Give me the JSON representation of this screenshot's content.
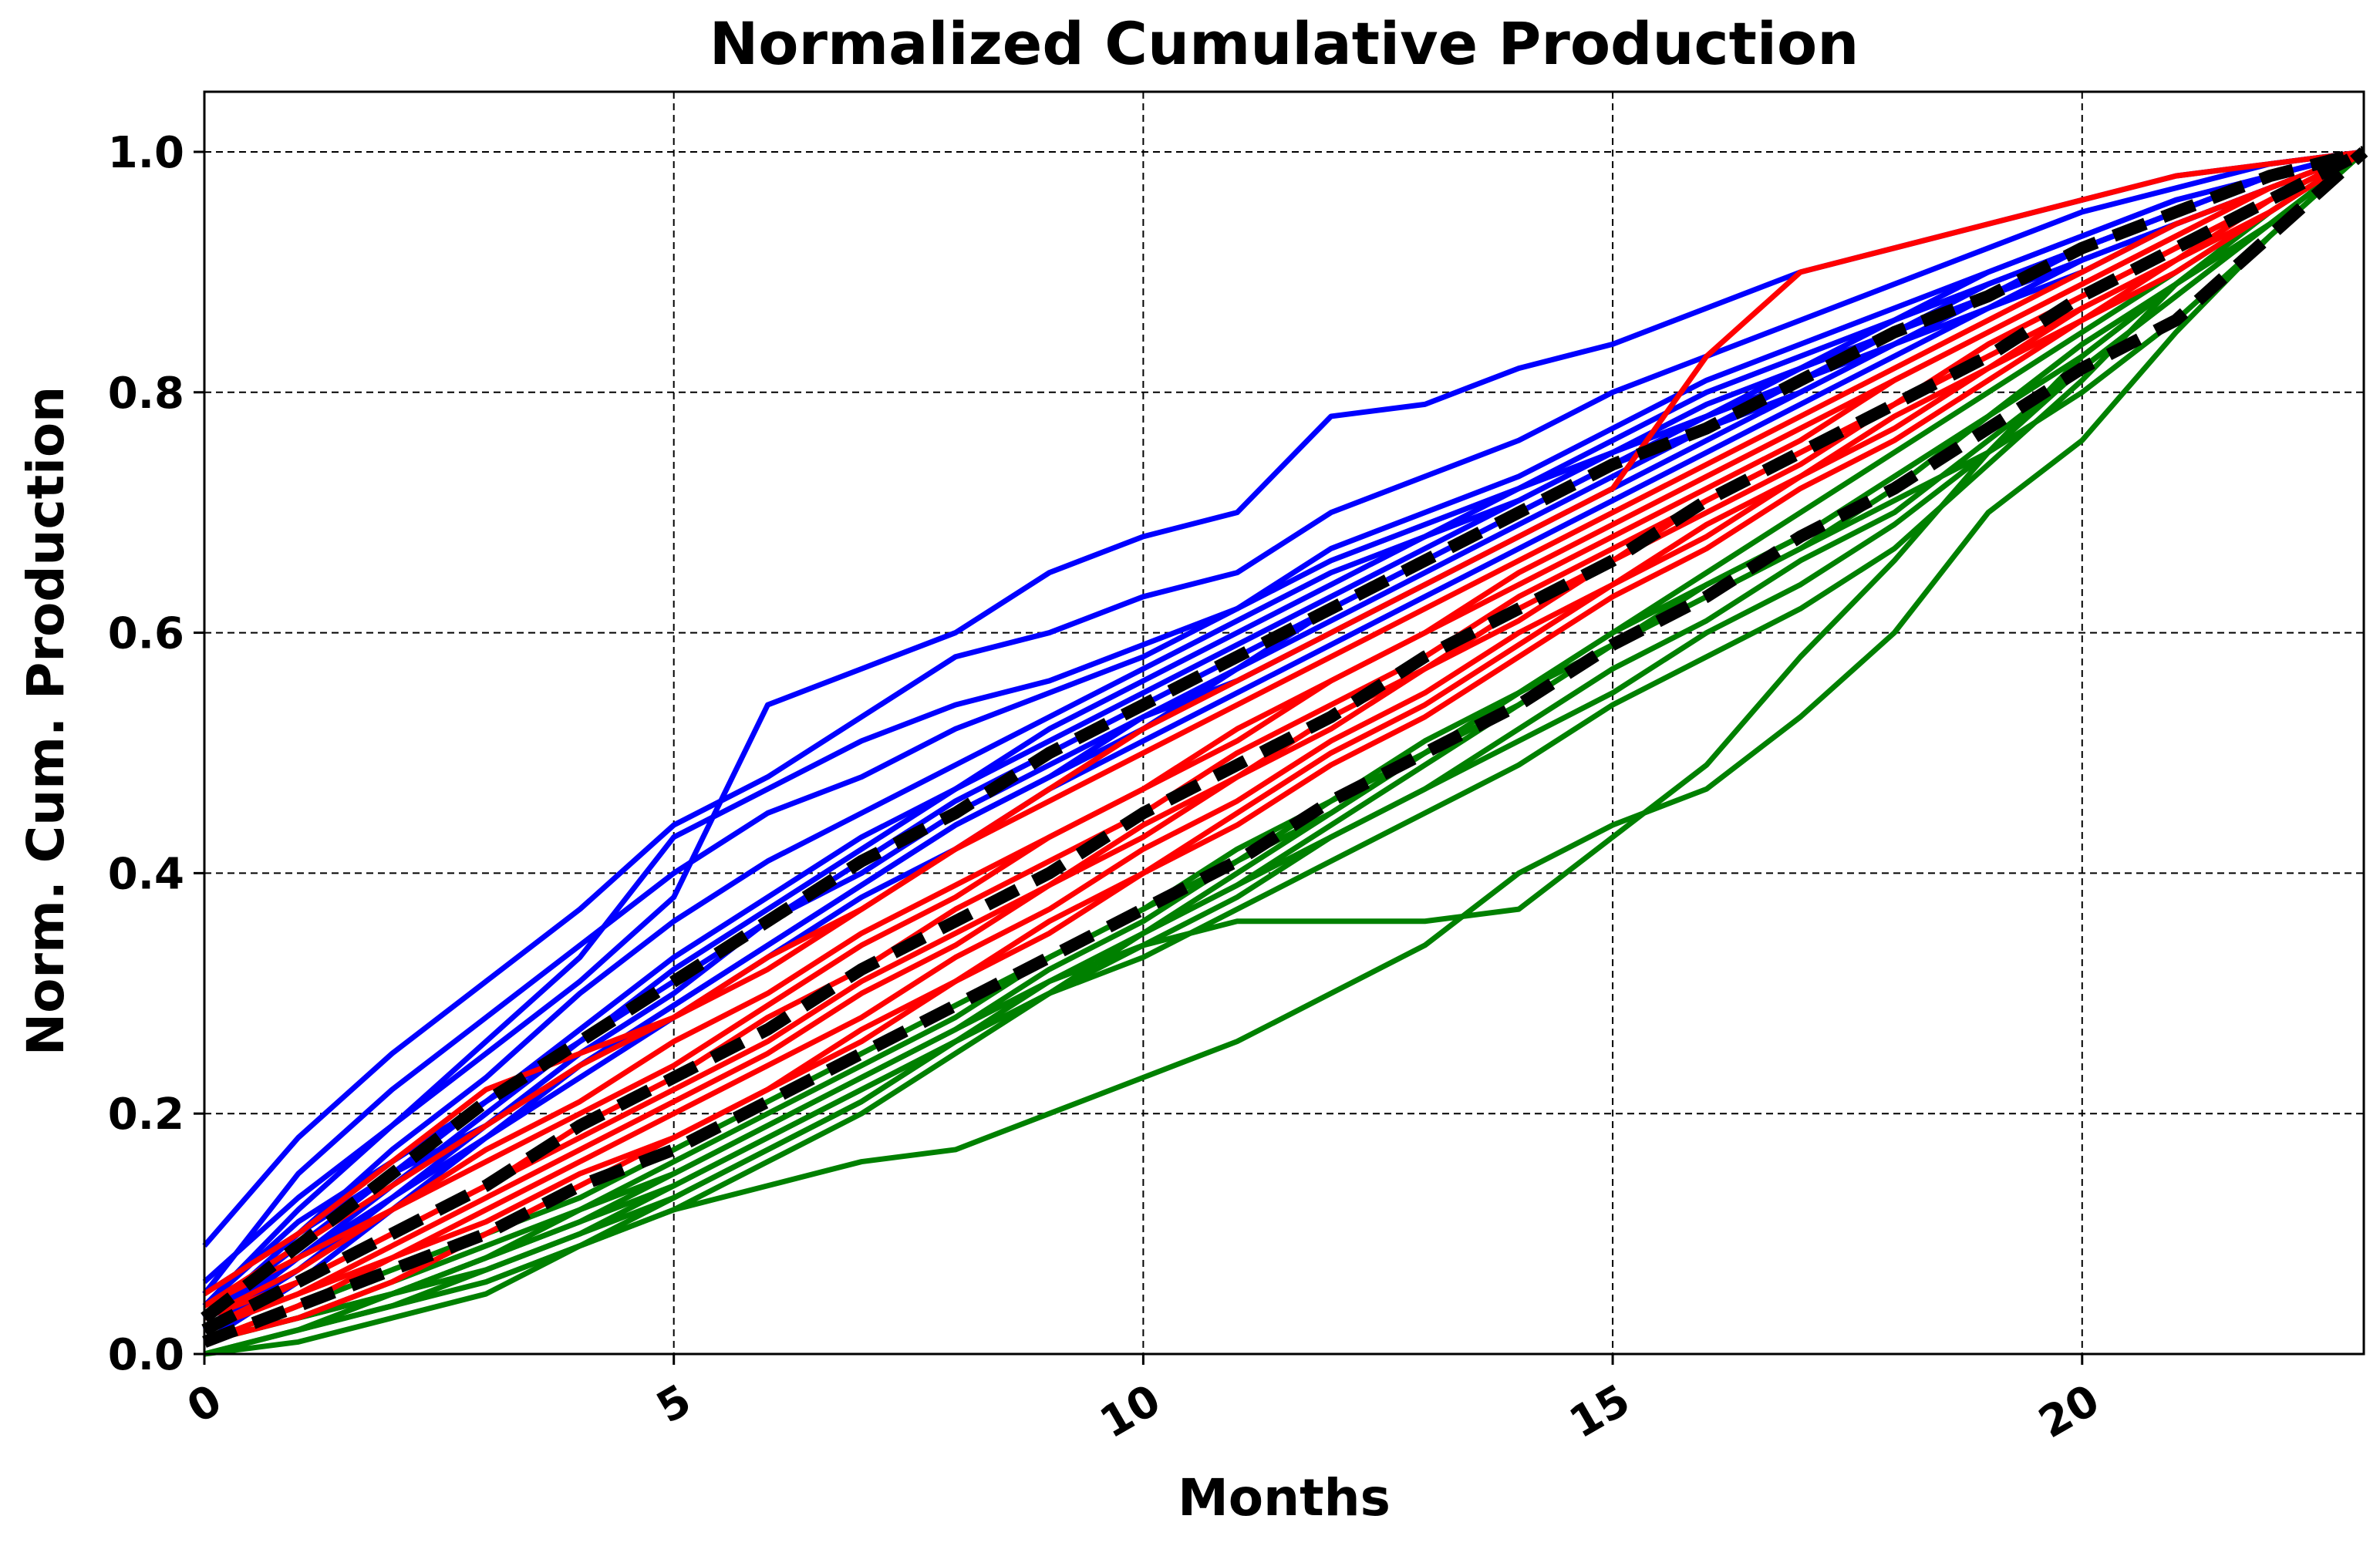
{
  "chart_data": {
    "type": "line",
    "title": "Normalized Cumulative Production",
    "xlabel": "Months",
    "ylabel": "Norm. Cum. Production",
    "xlim": [
      0,
      23
    ],
    "ylim": [
      0,
      1.05
    ],
    "xticks": [
      0,
      5,
      10,
      15,
      20
    ],
    "yticks": [
      0.0,
      0.2,
      0.4,
      0.6,
      0.8,
      1.0
    ],
    "xtick_labels": [
      "0",
      "5",
      "10",
      "15",
      "20"
    ],
    "ytick_labels": [
      "0.0",
      "0.2",
      "0.4",
      "0.6",
      "0.8",
      "1.0"
    ],
    "grid": true,
    "legend": "none",
    "colors": {
      "blue": "#0000ff",
      "red": "#ff0000",
      "green": "#008000",
      "reference": "#000000"
    },
    "months": [
      0,
      1,
      2,
      3,
      4,
      5,
      6,
      7,
      8,
      9,
      10,
      11,
      12,
      13,
      14,
      15,
      16,
      17,
      18,
      19,
      20,
      21,
      22,
      23
    ],
    "series": [
      {
        "color": "blue",
        "values": [
          0.09,
          0.18,
          0.25,
          0.31,
          0.37,
          0.44,
          0.48,
          0.53,
          0.58,
          0.6,
          0.63,
          0.65,
          0.7,
          0.73,
          0.76,
          0.8,
          0.83,
          0.86,
          0.89,
          0.92,
          0.95,
          0.97,
          0.99,
          1.0
        ]
      },
      {
        "color": "blue",
        "values": [
          0.06,
          0.13,
          0.19,
          0.25,
          0.31,
          0.38,
          0.54,
          0.57,
          0.6,
          0.65,
          0.68,
          0.7,
          0.78,
          0.79,
          0.82,
          0.84,
          0.87,
          0.9,
          0.92,
          0.94,
          0.96,
          0.98,
          0.99,
          1.0
        ]
      },
      {
        "color": "blue",
        "values": [
          0.05,
          0.15,
          0.22,
          0.28,
          0.34,
          0.4,
          0.45,
          0.48,
          0.52,
          0.55,
          0.58,
          0.62,
          0.67,
          0.7,
          0.73,
          0.77,
          0.81,
          0.84,
          0.87,
          0.9,
          0.93,
          0.96,
          0.98,
          1.0
        ]
      },
      {
        "color": "blue",
        "values": [
          0.04,
          0.12,
          0.19,
          0.26,
          0.33,
          0.43,
          0.47,
          0.51,
          0.54,
          0.56,
          0.59,
          0.62,
          0.66,
          0.69,
          0.72,
          0.76,
          0.8,
          0.83,
          0.86,
          0.9,
          0.93,
          0.96,
          0.98,
          1.0
        ]
      },
      {
        "color": "blue",
        "values": [
          0.03,
          0.1,
          0.17,
          0.23,
          0.3,
          0.36,
          0.41,
          0.45,
          0.49,
          0.53,
          0.57,
          0.61,
          0.65,
          0.68,
          0.72,
          0.75,
          0.79,
          0.82,
          0.86,
          0.89,
          0.92,
          0.95,
          0.98,
          1.0
        ]
      },
      {
        "color": "blue",
        "values": [
          0.04,
          0.11,
          0.16,
          0.21,
          0.26,
          0.32,
          0.37,
          0.42,
          0.47,
          0.51,
          0.55,
          0.59,
          0.63,
          0.67,
          0.71,
          0.75,
          0.78,
          0.82,
          0.85,
          0.89,
          0.92,
          0.95,
          0.98,
          1.0
        ]
      },
      {
        "color": "blue",
        "values": [
          0.02,
          0.08,
          0.14,
          0.2,
          0.26,
          0.31,
          0.36,
          0.41,
          0.46,
          0.5,
          0.54,
          0.58,
          0.62,
          0.66,
          0.7,
          0.74,
          0.78,
          0.81,
          0.85,
          0.88,
          0.92,
          0.95,
          0.98,
          1.0
        ]
      },
      {
        "color": "blue",
        "values": [
          0.03,
          0.09,
          0.15,
          0.21,
          0.27,
          0.33,
          0.38,
          0.43,
          0.47,
          0.52,
          0.56,
          0.6,
          0.64,
          0.68,
          0.71,
          0.75,
          0.78,
          0.82,
          0.85,
          0.88,
          0.91,
          0.94,
          0.97,
          1.0
        ]
      },
      {
        "color": "blue",
        "values": [
          0.05,
          0.1,
          0.15,
          0.19,
          0.24,
          0.29,
          0.34,
          0.39,
          0.44,
          0.48,
          0.53,
          0.57,
          0.61,
          0.65,
          0.69,
          0.73,
          0.77,
          0.81,
          0.84,
          0.88,
          0.92,
          0.95,
          0.98,
          1.0
        ]
      },
      {
        "color": "blue",
        "values": [
          0.02,
          0.07,
          0.13,
          0.19,
          0.25,
          0.3,
          0.36,
          0.4,
          0.45,
          0.49,
          0.53,
          0.56,
          0.6,
          0.64,
          0.68,
          0.72,
          0.76,
          0.8,
          0.84,
          0.88,
          0.91,
          0.94,
          0.97,
          1.0
        ]
      },
      {
        "color": "blue",
        "values": [
          0.01,
          0.06,
          0.12,
          0.18,
          0.24,
          0.29,
          0.34,
          0.39,
          0.44,
          0.48,
          0.52,
          0.57,
          0.62,
          0.66,
          0.7,
          0.74,
          0.77,
          0.8,
          0.84,
          0.87,
          0.91,
          0.94,
          0.97,
          1.0
        ]
      },
      {
        "color": "blue",
        "values": [
          0.03,
          0.08,
          0.13,
          0.18,
          0.23,
          0.28,
          0.33,
          0.38,
          0.42,
          0.47,
          0.51,
          0.55,
          0.59,
          0.63,
          0.67,
          0.71,
          0.75,
          0.79,
          0.83,
          0.87,
          0.9,
          0.94,
          0.97,
          1.0
        ]
      },
      {
        "color": "red",
        "values": [
          0.05,
          0.1,
          0.16,
          0.22,
          0.25,
          0.28,
          0.32,
          0.37,
          0.42,
          0.47,
          0.52,
          0.56,
          0.6,
          0.64,
          0.68,
          0.72,
          0.83,
          0.9,
          0.92,
          0.94,
          0.96,
          0.98,
          0.99,
          1.0
        ]
      },
      {
        "color": "red",
        "values": [
          0.04,
          0.09,
          0.14,
          0.19,
          0.24,
          0.28,
          0.33,
          0.37,
          0.42,
          0.46,
          0.5,
          0.54,
          0.58,
          0.62,
          0.66,
          0.7,
          0.74,
          0.78,
          0.82,
          0.86,
          0.9,
          0.94,
          0.97,
          1.0
        ]
      },
      {
        "color": "red",
        "values": [
          0.03,
          0.07,
          0.12,
          0.17,
          0.21,
          0.26,
          0.3,
          0.35,
          0.39,
          0.43,
          0.47,
          0.52,
          0.56,
          0.6,
          0.64,
          0.68,
          0.72,
          0.76,
          0.81,
          0.85,
          0.89,
          0.93,
          0.97,
          1.0
        ]
      },
      {
        "color": "red",
        "values": [
          0.02,
          0.06,
          0.1,
          0.14,
          0.19,
          0.23,
          0.28,
          0.32,
          0.37,
          0.41,
          0.45,
          0.5,
          0.54,
          0.58,
          0.63,
          0.67,
          0.71,
          0.75,
          0.79,
          0.84,
          0.88,
          0.92,
          0.96,
          1.0
        ]
      },
      {
        "color": "red",
        "values": [
          0.02,
          0.05,
          0.09,
          0.13,
          0.17,
          0.21,
          0.25,
          0.3,
          0.34,
          0.39,
          0.43,
          0.48,
          0.52,
          0.57,
          0.61,
          0.66,
          0.7,
          0.74,
          0.79,
          0.83,
          0.87,
          0.91,
          0.96,
          1.0
        ]
      },
      {
        "color": "red",
        "values": [
          0.01,
          0.04,
          0.08,
          0.12,
          0.16,
          0.2,
          0.24,
          0.28,
          0.33,
          0.37,
          0.42,
          0.46,
          0.51,
          0.55,
          0.6,
          0.64,
          0.69,
          0.73,
          0.78,
          0.82,
          0.87,
          0.91,
          0.96,
          1.0
        ]
      },
      {
        "color": "red",
        "values": [
          0.02,
          0.05,
          0.08,
          0.11,
          0.15,
          0.18,
          0.22,
          0.27,
          0.31,
          0.36,
          0.4,
          0.45,
          0.5,
          0.54,
          0.59,
          0.64,
          0.68,
          0.73,
          0.77,
          0.82,
          0.86,
          0.91,
          0.95,
          1.0
        ]
      },
      {
        "color": "red",
        "values": [
          0.03,
          0.06,
          0.1,
          0.14,
          0.18,
          0.22,
          0.26,
          0.31,
          0.35,
          0.39,
          0.44,
          0.48,
          0.53,
          0.57,
          0.62,
          0.66,
          0.71,
          0.75,
          0.79,
          0.84,
          0.88,
          0.92,
          0.96,
          1.0
        ]
      },
      {
        "color": "red",
        "values": [
          0.01,
          0.03,
          0.06,
          0.1,
          0.14,
          0.18,
          0.22,
          0.26,
          0.31,
          0.35,
          0.4,
          0.44,
          0.49,
          0.53,
          0.58,
          0.63,
          0.67,
          0.72,
          0.76,
          0.81,
          0.86,
          0.9,
          0.95,
          1.0
        ]
      },
      {
        "color": "red",
        "values": [
          0.04,
          0.08,
          0.12,
          0.16,
          0.2,
          0.24,
          0.29,
          0.34,
          0.38,
          0.43,
          0.47,
          0.51,
          0.56,
          0.6,
          0.65,
          0.69,
          0.73,
          0.77,
          0.81,
          0.85,
          0.89,
          0.93,
          0.97,
          1.0
        ]
      },
      {
        "color": "green",
        "values": [
          0.0,
          0.01,
          0.03,
          0.05,
          0.09,
          0.12,
          0.14,
          0.16,
          0.17,
          0.2,
          0.23,
          0.26,
          0.3,
          0.34,
          0.4,
          0.44,
          0.47,
          0.53,
          0.6,
          0.7,
          0.76,
          0.85,
          0.93,
          1.0
        ]
      },
      {
        "color": "green",
        "values": [
          0.0,
          0.02,
          0.04,
          0.06,
          0.09,
          0.13,
          0.17,
          0.21,
          0.26,
          0.31,
          0.34,
          0.36,
          0.36,
          0.36,
          0.37,
          0.43,
          0.49,
          0.58,
          0.66,
          0.75,
          0.83,
          0.89,
          0.95,
          1.0
        ]
      },
      {
        "color": "green",
        "values": [
          0.01,
          0.03,
          0.05,
          0.07,
          0.1,
          0.14,
          0.18,
          0.22,
          0.26,
          0.3,
          0.33,
          0.37,
          0.41,
          0.45,
          0.49,
          0.54,
          0.58,
          0.62,
          0.67,
          0.74,
          0.81,
          0.89,
          0.95,
          1.0
        ]
      },
      {
        "color": "green",
        "values": [
          0.01,
          0.03,
          0.05,
          0.08,
          0.11,
          0.15,
          0.19,
          0.23,
          0.27,
          0.31,
          0.35,
          0.39,
          0.43,
          0.47,
          0.51,
          0.55,
          0.6,
          0.64,
          0.69,
          0.75,
          0.82,
          0.88,
          0.94,
          1.0
        ]
      },
      {
        "color": "green",
        "values": [
          0.0,
          0.02,
          0.04,
          0.07,
          0.1,
          0.13,
          0.17,
          0.21,
          0.26,
          0.3,
          0.34,
          0.38,
          0.43,
          0.47,
          0.52,
          0.57,
          0.61,
          0.66,
          0.7,
          0.76,
          0.82,
          0.88,
          0.94,
          1.0
        ]
      },
      {
        "color": "green",
        "values": [
          0.01,
          0.03,
          0.06,
          0.09,
          0.12,
          0.16,
          0.2,
          0.24,
          0.28,
          0.33,
          0.37,
          0.42,
          0.46,
          0.51,
          0.55,
          0.6,
          0.64,
          0.68,
          0.73,
          0.78,
          0.83,
          0.89,
          0.95,
          1.0
        ]
      },
      {
        "color": "green",
        "values": [
          0.0,
          0.02,
          0.05,
          0.08,
          0.11,
          0.14,
          0.18,
          0.22,
          0.26,
          0.3,
          0.35,
          0.39,
          0.44,
          0.49,
          0.54,
          0.59,
          0.63,
          0.67,
          0.72,
          0.78,
          0.84,
          0.89,
          0.95,
          1.0
        ]
      },
      {
        "color": "green",
        "values": [
          0.01,
          0.04,
          0.07,
          0.1,
          0.13,
          0.17,
          0.21,
          0.25,
          0.29,
          0.33,
          0.37,
          0.41,
          0.46,
          0.5,
          0.55,
          0.59,
          0.64,
          0.68,
          0.73,
          0.78,
          0.84,
          0.89,
          0.94,
          1.0
        ]
      },
      {
        "color": "green",
        "values": [
          0.0,
          0.02,
          0.04,
          0.06,
          0.09,
          0.12,
          0.16,
          0.2,
          0.25,
          0.3,
          0.35,
          0.4,
          0.45,
          0.5,
          0.55,
          0.6,
          0.65,
          0.7,
          0.75,
          0.8,
          0.85,
          0.9,
          0.95,
          1.0
        ]
      },
      {
        "color": "green",
        "values": [
          0.01,
          0.03,
          0.05,
          0.08,
          0.12,
          0.15,
          0.19,
          0.23,
          0.27,
          0.32,
          0.36,
          0.41,
          0.45,
          0.5,
          0.54,
          0.59,
          0.63,
          0.67,
          0.71,
          0.75,
          0.8,
          0.86,
          0.93,
          1.0
        ]
      },
      {
        "color": "reference",
        "values": [
          0.03,
          0.09,
          0.15,
          0.21,
          0.26,
          0.31,
          0.36,
          0.41,
          0.45,
          0.5,
          0.54,
          0.58,
          0.62,
          0.66,
          0.7,
          0.74,
          0.77,
          0.81,
          0.85,
          0.88,
          0.92,
          0.95,
          0.98,
          1.0
        ]
      },
      {
        "color": "reference",
        "values": [
          0.02,
          0.06,
          0.1,
          0.14,
          0.19,
          0.23,
          0.27,
          0.32,
          0.36,
          0.4,
          0.45,
          0.49,
          0.53,
          0.58,
          0.62,
          0.66,
          0.71,
          0.75,
          0.79,
          0.83,
          0.88,
          0.92,
          0.96,
          1.0
        ]
      },
      {
        "color": "reference",
        "values": [
          0.01,
          0.04,
          0.07,
          0.1,
          0.14,
          0.17,
          0.21,
          0.25,
          0.29,
          0.33,
          0.37,
          0.41,
          0.46,
          0.5,
          0.54,
          0.59,
          0.63,
          0.68,
          0.72,
          0.77,
          0.82,
          0.86,
          0.93,
          1.0
        ]
      }
    ]
  }
}
